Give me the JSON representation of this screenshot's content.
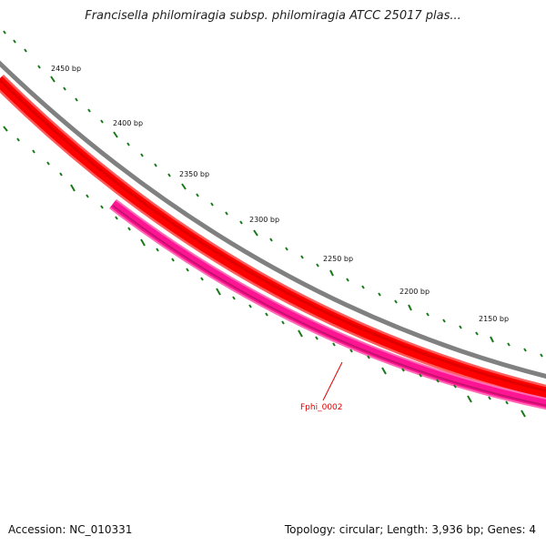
{
  "title": "Francisella philomiragia subsp. philomiragia ATCC 25017 plas...",
  "accession": "Accession: NC_010331",
  "summary": "Topology: circular; Length: 3,936 bp; Genes: 4",
  "colors": {
    "backbone": "#808080",
    "forward_strand": "#ff0000",
    "gene_feature": "#ff1493",
    "tick_marks": "#1a7a1a",
    "gene_label": "#e00000"
  },
  "ticks": [
    {
      "label": "2450 bp"
    },
    {
      "label": "2400 bp"
    },
    {
      "label": "2350 bp"
    },
    {
      "label": "2300 bp"
    },
    {
      "label": "2250 bp"
    },
    {
      "label": "2200 bp"
    },
    {
      "label": "2150 bp"
    }
  ],
  "gene": {
    "label": "Fphi_0002"
  }
}
